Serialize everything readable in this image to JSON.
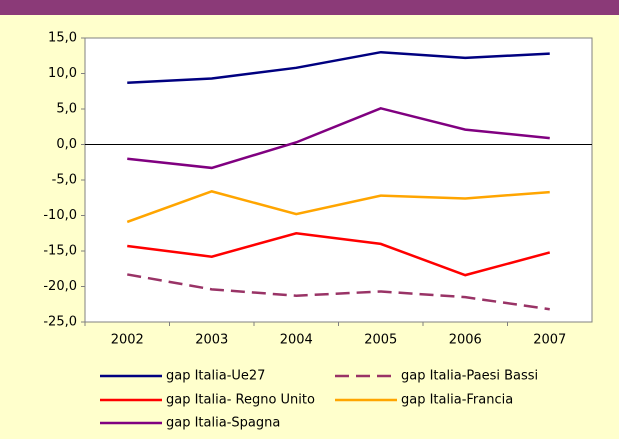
{
  "chart_data": {
    "type": "line",
    "categories": [
      "2002",
      "2003",
      "2004",
      "2005",
      "2006",
      "2007"
    ],
    "ylim": [
      -25,
      15
    ],
    "yticks": [
      {
        "value": -25,
        "label": "-25,0"
      },
      {
        "value": -20,
        "label": "-20,0"
      },
      {
        "value": -15,
        "label": "-15,0"
      },
      {
        "value": -10,
        "label": "-10,0"
      },
      {
        "value": -5,
        "label": "-5,0"
      },
      {
        "value": 0,
        "label": "0,0"
      },
      {
        "value": 5,
        "label": "5,0"
      },
      {
        "value": 10,
        "label": "10,0"
      },
      {
        "value": 15,
        "label": "15,0"
      }
    ],
    "grid": false,
    "series": [
      {
        "name": "gap Italia-Ue27",
        "color": "#000080",
        "dashed": false,
        "values": [
          8.7,
          9.3,
          10.8,
          13.0,
          12.2,
          12.8
        ]
      },
      {
        "name": "gap Italia-Paesi Bassi",
        "color": "#993366",
        "dashed": true,
        "values": [
          -18.3,
          -20.4,
          -21.3,
          -20.7,
          -21.5,
          -23.2
        ]
      },
      {
        "name": "gap Italia- Regno Unito",
        "color": "#ff0000",
        "dashed": false,
        "values": [
          -14.3,
          -15.8,
          -12.5,
          -14.0,
          -18.4,
          -15.2
        ]
      },
      {
        "name": "gap Italia-Francia",
        "color": "#ffa500",
        "dashed": false,
        "values": [
          -10.9,
          -6.6,
          -9.8,
          -7.2,
          -7.6,
          -6.7
        ]
      },
      {
        "name": "gap Italia-Spagna",
        "color": "#800080",
        "dashed": false,
        "values": [
          -2.0,
          -3.3,
          0.3,
          5.1,
          2.1,
          0.9
        ]
      }
    ]
  }
}
